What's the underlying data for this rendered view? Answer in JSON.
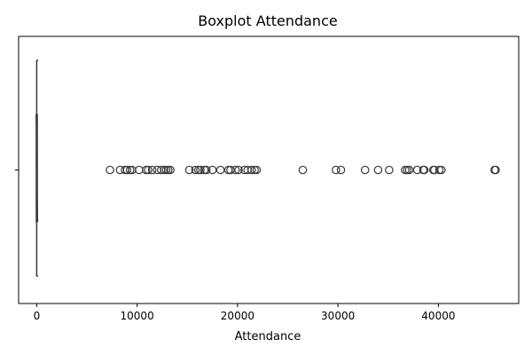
{
  "chart_data": {
    "type": "boxplot",
    "title": "Boxplot Attendance",
    "xlabel": "Attendance",
    "ylabel": "",
    "xlim": [
      -1800,
      48000
    ],
    "x_ticks": [
      0,
      10000,
      20000,
      30000,
      40000
    ],
    "x_tick_labels": [
      "0",
      "10000",
      "20000",
      "30000",
      "40000"
    ],
    "y_ticks": [
      ""
    ],
    "grid": false,
    "colors": {
      "box": "#3a3a3a",
      "outlier_edge": "#3a3a3a",
      "frame": "#000000"
    },
    "box": {
      "min": 0,
      "q1": 10,
      "median": 20,
      "q3": 40,
      "whisker_high": 100
    },
    "outliers": [
      7300,
      8300,
      8800,
      9000,
      9300,
      9500,
      10200,
      10900,
      11100,
      11500,
      12000,
      12400,
      12700,
      12900,
      13100,
      13300,
      15200,
      15800,
      16100,
      16300,
      16700,
      16900,
      17500,
      18300,
      19100,
      19300,
      19800,
      20100,
      20700,
      21000,
      21400,
      21700,
      21900,
      26500,
      29800,
      30300,
      32700,
      34000,
      35100,
      36700,
      36900,
      37100,
      37900,
      38500,
      38600,
      39500,
      39600,
      40100,
      40300,
      45600,
      45700
    ]
  }
}
